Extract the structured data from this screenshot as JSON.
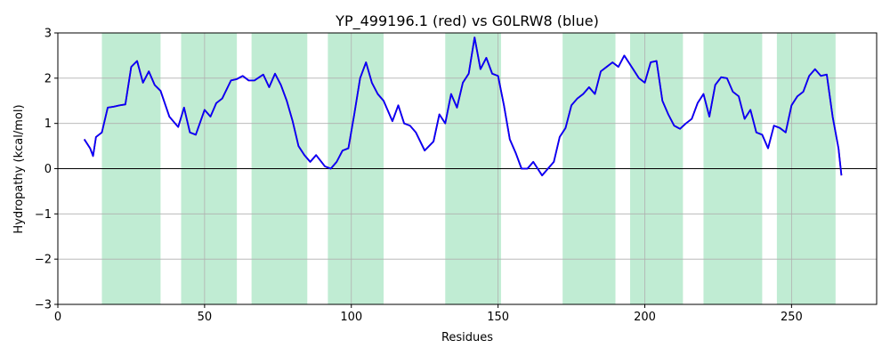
{
  "chart_data": {
    "type": "line",
    "title": "YP_499196.1 (red) vs G0LRW8 (blue)",
    "xlabel": "Residues",
    "ylabel": "Hydropathy (kcal/mol)",
    "xlim": [
      0,
      279
    ],
    "ylim": [
      -3,
      3
    ],
    "xticks": [
      0,
      50,
      100,
      150,
      200,
      250
    ],
    "yticks": [
      -3,
      -2,
      -1,
      0,
      1,
      2,
      3
    ],
    "grid": true,
    "zero_line": true,
    "highlight_color": "#c0ecd3",
    "highlight_regions": [
      [
        15,
        35
      ],
      [
        42,
        61
      ],
      [
        66,
        85
      ],
      [
        92,
        111
      ],
      [
        132,
        151
      ],
      [
        172,
        190
      ],
      [
        195,
        213
      ],
      [
        220,
        240
      ],
      [
        245,
        265
      ]
    ],
    "series": [
      {
        "color": "#ff0000",
        "x": [
          9,
          11,
          12,
          13,
          15,
          17,
          19,
          21,
          23,
          25,
          27,
          29,
          31,
          33,
          35,
          38,
          41,
          43,
          45,
          47,
          50,
          52,
          54,
          56,
          59,
          61,
          63,
          65,
          67,
          70,
          72,
          74,
          76,
          78,
          80,
          82,
          84,
          86,
          88,
          91,
          93,
          95,
          97,
          99,
          101,
          103,
          105,
          107,
          109,
          111,
          114,
          116,
          118,
          120,
          122,
          125,
          128,
          130,
          132,
          134,
          136,
          138,
          140,
          142,
          144,
          146,
          148,
          150,
          152,
          154,
          156,
          158,
          160,
          162,
          165,
          167,
          169,
          171,
          173,
          175,
          177,
          179,
          181,
          183,
          185,
          187,
          189,
          191,
          193,
          196,
          198,
          200,
          202,
          204,
          206,
          208,
          210,
          212,
          214,
          216,
          218,
          220,
          222,
          224,
          226,
          228,
          230,
          232,
          234,
          236,
          238,
          240,
          242,
          244,
          246,
          248,
          250,
          252,
          254,
          256,
          258,
          260,
          262,
          264,
          266,
          267
        ],
        "values": [
          0.65,
          0.45,
          0.28,
          0.7,
          0.8,
          1.35,
          1.37,
          1.4,
          1.42,
          2.25,
          2.38,
          1.9,
          2.15,
          1.85,
          1.72,
          1.15,
          0.92,
          1.35,
          0.8,
          0.75,
          1.3,
          1.15,
          1.45,
          1.55,
          1.95,
          1.98,
          2.05,
          1.95,
          1.95,
          2.08,
          1.8,
          2.1,
          1.85,
          1.5,
          1.05,
          0.5,
          0.3,
          0.15,
          0.3,
          0.05,
          0.0,
          0.15,
          0.4,
          0.45,
          1.2,
          2.0,
          2.35,
          1.9,
          1.65,
          1.5,
          1.05,
          1.4,
          1.0,
          0.95,
          0.8,
          0.4,
          0.6,
          1.2,
          1.0,
          1.65,
          1.35,
          1.9,
          2.1,
          2.9,
          2.2,
          2.45,
          2.1,
          2.05,
          1.4,
          0.65,
          0.35,
          0.0,
          0.0,
          0.15,
          -0.15,
          0.0,
          0.15,
          0.7,
          0.9,
          1.4,
          1.55,
          1.65,
          1.8,
          1.65,
          2.15,
          2.25,
          2.35,
          2.25,
          2.5,
          2.2,
          2.0,
          1.9,
          2.35,
          2.38,
          1.5,
          1.2,
          0.95,
          0.88,
          1.0,
          1.1,
          1.45,
          1.65,
          1.15,
          1.85,
          2.02,
          2.0,
          1.7,
          1.6,
          1.1,
          1.3,
          0.8,
          0.75,
          0.45,
          0.95,
          0.9,
          0.8,
          1.4,
          1.6,
          1.7,
          2.05,
          2.2,
          2.05,
          2.08,
          1.15,
          0.45,
          -0.15
        ]
      },
      {
        "color": "#0000ff",
        "x": [
          9,
          11,
          12,
          13,
          15,
          17,
          19,
          21,
          23,
          25,
          27,
          29,
          31,
          33,
          35,
          38,
          41,
          43,
          45,
          47,
          50,
          52,
          54,
          56,
          59,
          61,
          63,
          65,
          67,
          70,
          72,
          74,
          76,
          78,
          80,
          82,
          84,
          86,
          88,
          91,
          93,
          95,
          97,
          99,
          101,
          103,
          105,
          107,
          109,
          111,
          114,
          116,
          118,
          120,
          122,
          125,
          128,
          130,
          132,
          134,
          136,
          138,
          140,
          142,
          144,
          146,
          148,
          150,
          152,
          154,
          156,
          158,
          160,
          162,
          165,
          167,
          169,
          171,
          173,
          175,
          177,
          179,
          181,
          183,
          185,
          187,
          189,
          191,
          193,
          196,
          198,
          200,
          202,
          204,
          206,
          208,
          210,
          212,
          214,
          216,
          218,
          220,
          222,
          224,
          226,
          228,
          230,
          232,
          234,
          236,
          238,
          240,
          242,
          244,
          246,
          248,
          250,
          252,
          254,
          256,
          258,
          260,
          262,
          264,
          266,
          267
        ],
        "values": [
          0.65,
          0.45,
          0.28,
          0.7,
          0.8,
          1.35,
          1.37,
          1.4,
          1.42,
          2.25,
          2.38,
          1.9,
          2.15,
          1.85,
          1.72,
          1.15,
          0.92,
          1.35,
          0.8,
          0.75,
          1.3,
          1.15,
          1.45,
          1.55,
          1.95,
          1.98,
          2.05,
          1.95,
          1.95,
          2.08,
          1.8,
          2.1,
          1.85,
          1.5,
          1.05,
          0.5,
          0.3,
          0.15,
          0.3,
          0.05,
          0.0,
          0.15,
          0.4,
          0.45,
          1.2,
          2.0,
          2.35,
          1.9,
          1.65,
          1.5,
          1.05,
          1.4,
          1.0,
          0.95,
          0.8,
          0.4,
          0.6,
          1.2,
          1.0,
          1.65,
          1.35,
          1.9,
          2.1,
          2.9,
          2.2,
          2.45,
          2.1,
          2.05,
          1.4,
          0.65,
          0.35,
          0.0,
          0.0,
          0.15,
          -0.15,
          0.0,
          0.15,
          0.7,
          0.9,
          1.4,
          1.55,
          1.65,
          1.8,
          1.65,
          2.15,
          2.25,
          2.35,
          2.25,
          2.5,
          2.2,
          2.0,
          1.9,
          2.35,
          2.38,
          1.5,
          1.2,
          0.95,
          0.88,
          1.0,
          1.1,
          1.45,
          1.65,
          1.15,
          1.85,
          2.02,
          2.0,
          1.7,
          1.6,
          1.1,
          1.3,
          0.8,
          0.75,
          0.45,
          0.95,
          0.9,
          0.8,
          1.4,
          1.6,
          1.7,
          2.05,
          2.2,
          2.05,
          2.08,
          1.15,
          0.45,
          -0.15
        ]
      }
    ]
  }
}
